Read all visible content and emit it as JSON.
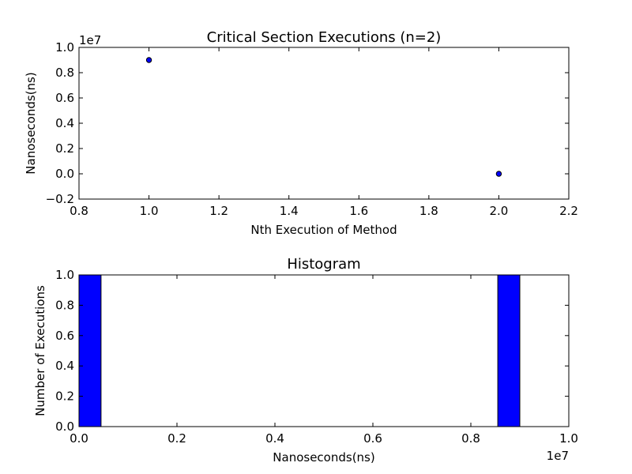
{
  "chart_data": [
    {
      "type": "scatter",
      "title": "Critical Section Executions (n=2)",
      "xlabel": "Nth Execution of Method",
      "ylabel": "Nanoseconds(ns)",
      "y_offset_label": "1e7",
      "xlim": [
        0.8,
        2.2
      ],
      "ylim": [
        -0.2,
        1.0
      ],
      "xticks": [
        "0.8",
        "1.0",
        "1.2",
        "1.4",
        "1.6",
        "1.8",
        "2.0",
        "2.2"
      ],
      "yticks": [
        "−0.2",
        "0.0",
        "0.2",
        "0.4",
        "0.6",
        "0.8",
        "1.0"
      ],
      "x": [
        1.0,
        2.0
      ],
      "y": [
        0.9,
        0.0
      ],
      "marker_color": "#0000ff",
      "grid": false
    },
    {
      "type": "bar",
      "title": "Histogram",
      "xlabel": "Nanoseconds(ns)",
      "ylabel": "Number of Executions",
      "x_offset_label": "1e7",
      "xlim": [
        0.0,
        1.0
      ],
      "ylim": [
        0.0,
        1.0
      ],
      "xticks": [
        "0.0",
        "0.2",
        "0.4",
        "0.6",
        "0.8",
        "1.0"
      ],
      "yticks": [
        "0.0",
        "0.2",
        "0.4",
        "0.6",
        "0.8",
        "1.0"
      ],
      "bins": [
        {
          "start": 0.0,
          "end": 0.045,
          "count": 1
        },
        {
          "start": 0.855,
          "end": 0.9,
          "count": 1
        }
      ],
      "bar_color": "#0000ff",
      "grid": false
    }
  ]
}
